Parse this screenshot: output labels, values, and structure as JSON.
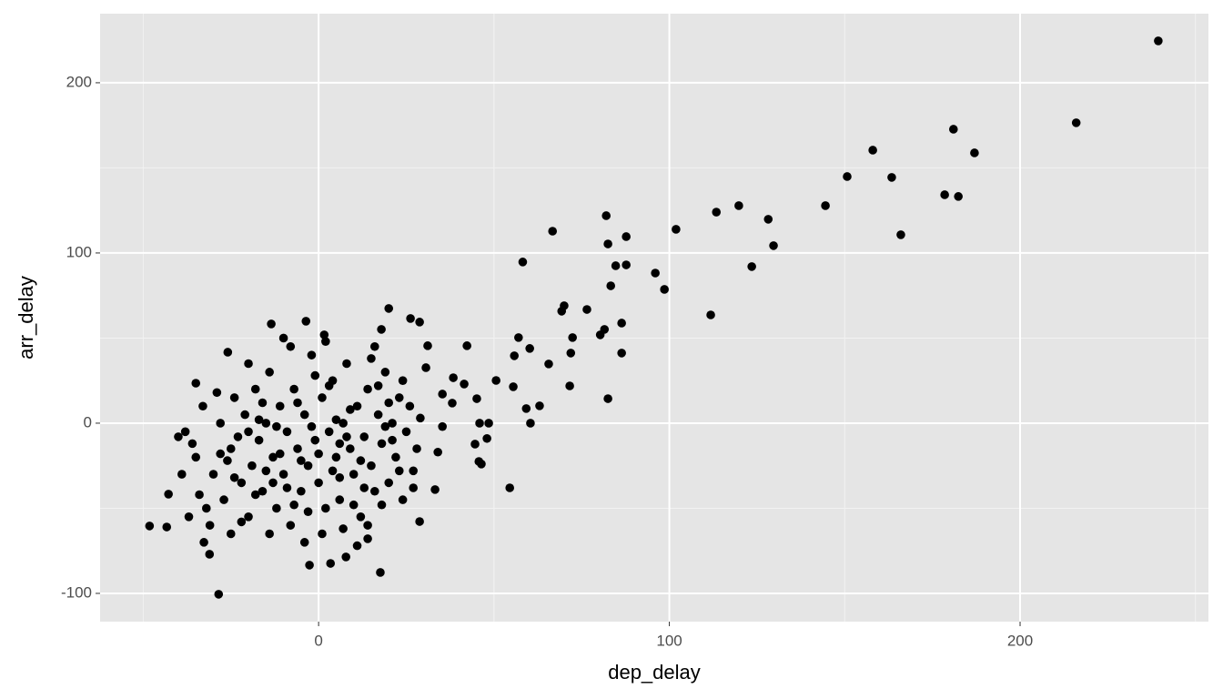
{
  "chart_data": {
    "type": "scatter",
    "x_label": "dep_delay",
    "y_label": "arr_delay",
    "color": "#000000",
    "background": "#e5e5e5",
    "grid": true,
    "xlim": [
      -62.3,
      253.7
    ],
    "ylim": [
      -116.6,
      240.6
    ],
    "xticks": [
      0,
      100,
      200
    ],
    "yticks": [
      -100,
      0,
      100,
      200
    ],
    "minor_xticks": [
      -50,
      50,
      150,
      250
    ],
    "minor_yticks": [
      -50,
      50,
      150
    ],
    "x": [
      239.4,
      216,
      181,
      187,
      182.4,
      178.5,
      163.4,
      166,
      158,
      150.7,
      144.5,
      129.7,
      128.2,
      123.5,
      119.8,
      113.4,
      111.8,
      101.9,
      98.6,
      96,
      87.7,
      87.7,
      84.7,
      83.3,
      86.4,
      86.4,
      82.5,
      82,
      81.5,
      80.3,
      82.5,
      76.5,
      72.4,
      71.9,
      71.6,
      70,
      69.3,
      66.7,
      65.6,
      63,
      60.4,
      60.2,
      59.2,
      58.2,
      57,
      55.8,
      55.5,
      54.5,
      50.6,
      48.5,
      48,
      46.4,
      45.7,
      44.6,
      45.9,
      45.1,
      42.3,
      41.5,
      38.4,
      38.1,
      35.3,
      35.3,
      34,
      33.2,
      31.1,
      30.6,
      28.8,
      26.2,
      28.8,
      -48.2,
      -43.3,
      -28.5,
      -42.8,
      -35,
      -25.9,
      -13.5,
      -3.6,
      1.6,
      20,
      17.9,
      3.4,
      17.6,
      -2.6,
      7.8,
      14,
      -32.7,
      -31.1,
      -38,
      -35,
      -33,
      -30,
      -28,
      -27,
      -25,
      -24,
      -22,
      -21,
      -20,
      -19,
      -18,
      -17,
      -16,
      -15,
      -14,
      -13,
      -12,
      -11,
      -10,
      -9,
      -8,
      -7,
      -6,
      -5,
      -4,
      -3,
      -2,
      -1,
      0,
      1,
      2,
      3,
      4,
      5,
      6,
      7,
      8,
      9,
      10,
      11,
      12,
      13,
      14,
      15,
      16,
      17,
      18,
      19,
      20,
      21,
      22,
      23,
      24,
      25,
      26,
      27,
      28,
      29,
      -36,
      -32,
      -29,
      -26,
      -23,
      -20,
      -18,
      -15,
      -12,
      -9,
      -6,
      -3,
      0,
      3,
      6,
      9,
      12,
      15,
      18,
      21,
      24,
      27,
      -31,
      -25,
      -20,
      -14,
      -8,
      -4,
      2,
      7,
      11,
      16,
      -39,
      -34,
      -22,
      -16,
      -11,
      -7,
      -1,
      4,
      8,
      13,
      19,
      23,
      -28,
      -17,
      -5,
      5,
      10,
      20,
      -40,
      -37,
      -10,
      1,
      14,
      -24,
      -2,
      6,
      -13,
      17
    ],
    "y": [
      224.6,
      176.5,
      172.7,
      158.8,
      133.2,
      134.2,
      144.4,
      110.7,
      160.4,
      144.9,
      127.8,
      104.3,
      119.8,
      92,
      127.8,
      124,
      63.6,
      113.9,
      78.6,
      88.2,
      109.6,
      93,
      92.5,
      80.7,
      58.8,
      41.2,
      105.3,
      121.9,
      55.1,
      51.9,
      14.4,
      66.8,
      50.3,
      41.2,
      21.9,
      69,
      65.8,
      112.8,
      34.8,
      10.2,
      0,
      43.9,
      8.6,
      94.7,
      50.3,
      39.6,
      21.4,
      -38,
      25.1,
      0,
      -9,
      -24,
      -22.5,
      -12.3,
      0,
      14.4,
      45.5,
      23,
      26.7,
      11.8,
      17.1,
      -2,
      -17,
      -39,
      45.5,
      32.6,
      59.4,
      61.5,
      -57.8,
      -60.4,
      -61,
      -100.5,
      -41.7,
      23.5,
      41.7,
      58.3,
      59.9,
      51.9,
      67.4,
      55.1,
      -82.4,
      -87.7,
      -83.4,
      -78.6,
      -67.9,
      -70,
      -77,
      -5,
      -20,
      10,
      -30,
      0,
      -45,
      -15,
      15,
      -35,
      5,
      -55,
      -25,
      20,
      -10,
      -40,
      0,
      30,
      -20,
      -50,
      10,
      -30,
      -5,
      -60,
      20,
      -15,
      -40,
      5,
      -25,
      40,
      -10,
      -35,
      15,
      -50,
      -5,
      25,
      -20,
      -45,
      0,
      35,
      -15,
      -30,
      10,
      -55,
      -8,
      20,
      -25,
      -40,
      5,
      -12,
      30,
      -35,
      0,
      -20,
      15,
      -45,
      -5,
      10,
      -28,
      -15,
      3,
      -12,
      -50,
      18,
      -22,
      -8,
      35,
      -42,
      -28,
      -2,
      -38,
      12,
      -52,
      -18,
      22,
      -32,
      8,
      -22,
      38,
      -48,
      -10,
      25,
      -38,
      -60,
      -65,
      -5,
      -65,
      45,
      -70,
      48,
      -62,
      -72,
      45,
      -30,
      -42,
      -58,
      12,
      -18,
      -48,
      28,
      -28,
      -8,
      -38,
      -2,
      -28,
      -18,
      2,
      -22,
      2,
      -48,
      12,
      -8,
      -55,
      50,
      -65,
      -60,
      -32,
      -2,
      -12,
      -35,
      22
    ]
  }
}
